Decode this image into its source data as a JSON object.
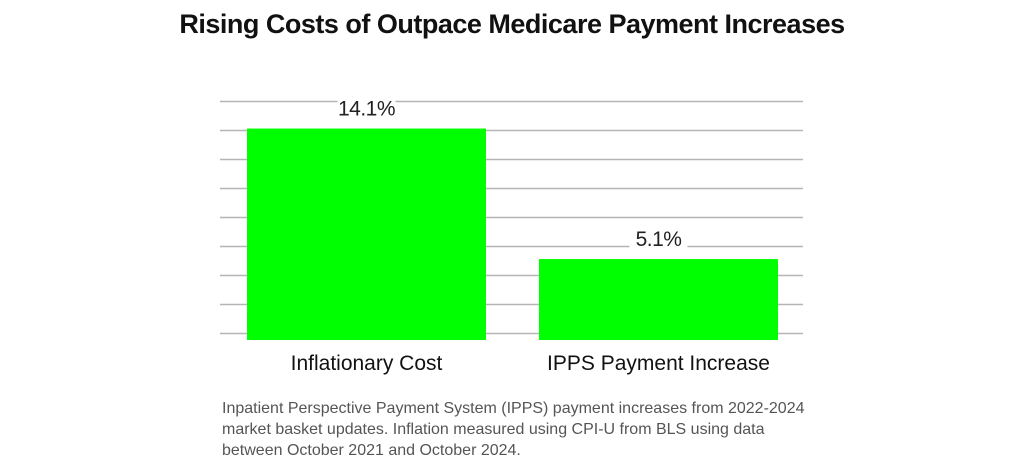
{
  "chart_data": {
    "type": "bar",
    "title": "Rising Costs of Outpace Medicare Payment Increases",
    "categories": [
      "Inflationary Cost",
      "IPPS Payment Increase"
    ],
    "values": [
      14.1,
      5.1
    ],
    "data_labels": [
      "14.1%",
      "5.1%"
    ],
    "xlabel": "",
    "ylabel": "",
    "ylim": [
      0,
      16
    ],
    "grid": true,
    "grid_step": 2,
    "bar_color": "#00ff00",
    "grid_color": "#b5b5b5"
  },
  "caption": "Inpatient Perspective Payment System (IPPS) payment increases from 2022-2024 market basket updates. Inflation measured using CPI-U from BLS using data between October 2021 and October 2024."
}
